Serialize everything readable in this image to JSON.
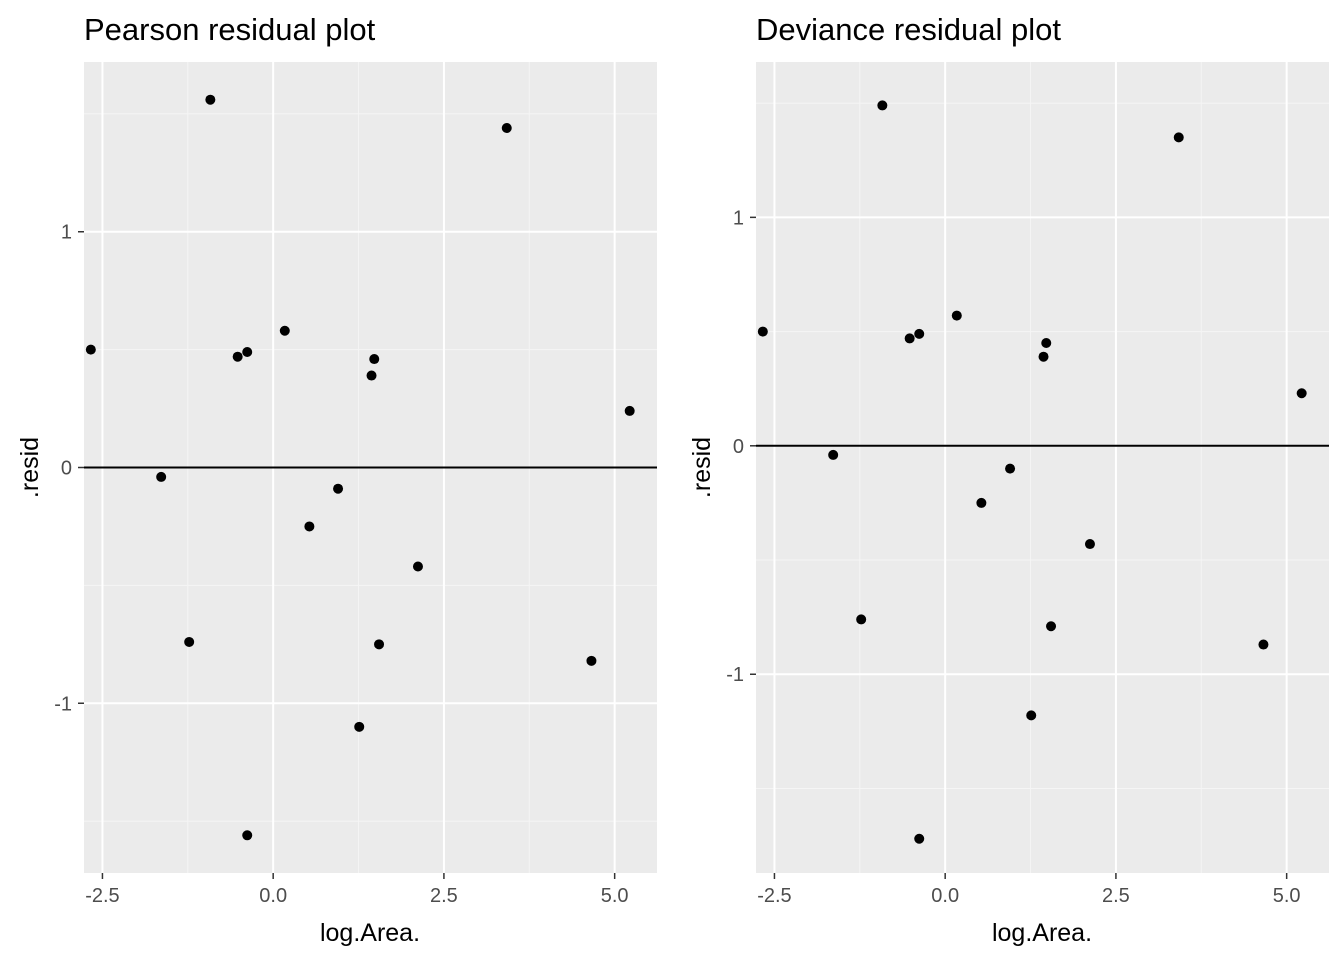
{
  "chart_data": [
    {
      "type": "scatter",
      "title": "Pearson residual plot",
      "xlabel": "log.Area.",
      "ylabel": ".resid",
      "xlim": [
        -2.77,
        5.62
      ],
      "ylim": [
        -1.72,
        1.72
      ],
      "x_ticks": [
        -2.5,
        0.0,
        2.5,
        5.0
      ],
      "x_tick_labels": [
        "-2.5",
        "0.0",
        "2.5",
        "5.0"
      ],
      "y_ticks": [
        -1,
        0,
        1
      ],
      "y_tick_labels": [
        "-1",
        "0",
        "1"
      ],
      "hline": 0,
      "grid": true,
      "points": [
        {
          "x": -2.67,
          "y": 0.5
        },
        {
          "x": -1.64,
          "y": -0.04
        },
        {
          "x": -1.23,
          "y": -0.74
        },
        {
          "x": -0.92,
          "y": 1.56
        },
        {
          "x": -0.52,
          "y": 0.47
        },
        {
          "x": -0.38,
          "y": 0.49
        },
        {
          "x": -0.38,
          "y": -1.56
        },
        {
          "x": 0.17,
          "y": 0.58
        },
        {
          "x": 0.53,
          "y": -0.25
        },
        {
          "x": 0.95,
          "y": -0.09
        },
        {
          "x": 1.26,
          "y": -1.1
        },
        {
          "x": 1.44,
          "y": 0.39
        },
        {
          "x": 1.48,
          "y": 0.46
        },
        {
          "x": 1.55,
          "y": -0.75
        },
        {
          "x": 2.12,
          "y": -0.42
        },
        {
          "x": 3.42,
          "y": 1.44
        },
        {
          "x": 4.66,
          "y": -0.82
        },
        {
          "x": 5.22,
          "y": 0.24
        }
      ]
    },
    {
      "type": "scatter",
      "title": "Deviance residual plot",
      "xlabel": "log.Area.",
      "ylabel": ".resid",
      "xlim": [
        -2.77,
        5.62
      ],
      "ylim": [
        -1.87,
        1.68
      ],
      "x_ticks": [
        -2.5,
        0.0,
        2.5,
        5.0
      ],
      "x_tick_labels": [
        "-2.5",
        "0.0",
        "2.5",
        "5.0"
      ],
      "y_ticks": [
        -1,
        0,
        1
      ],
      "y_tick_labels": [
        "-1",
        "0",
        "1"
      ],
      "hline": 0,
      "grid": true,
      "points": [
        {
          "x": -2.67,
          "y": 0.5
        },
        {
          "x": -1.64,
          "y": -0.04
        },
        {
          "x": -1.23,
          "y": -0.76
        },
        {
          "x": -0.92,
          "y": 1.49
        },
        {
          "x": -0.52,
          "y": 0.47
        },
        {
          "x": -0.38,
          "y": 0.49
        },
        {
          "x": -0.38,
          "y": -1.72
        },
        {
          "x": 0.17,
          "y": 0.57
        },
        {
          "x": 0.53,
          "y": -0.25
        },
        {
          "x": 0.95,
          "y": -0.1
        },
        {
          "x": 1.26,
          "y": -1.18
        },
        {
          "x": 1.44,
          "y": 0.39
        },
        {
          "x": 1.48,
          "y": 0.45
        },
        {
          "x": 1.55,
          "y": -0.79
        },
        {
          "x": 2.12,
          "y": -0.43
        },
        {
          "x": 3.42,
          "y": 1.35
        },
        {
          "x": 4.66,
          "y": -0.87
        },
        {
          "x": 5.22,
          "y": 0.23
        }
      ]
    }
  ],
  "colors": {
    "panel_background": "#ebebeb",
    "grid_major": "#ffffff",
    "grid_minor": "#f5f5f5",
    "point": "#000000",
    "hline": "#000000",
    "tick_label": "#4d4d4d",
    "tick_mark": "#333333"
  }
}
